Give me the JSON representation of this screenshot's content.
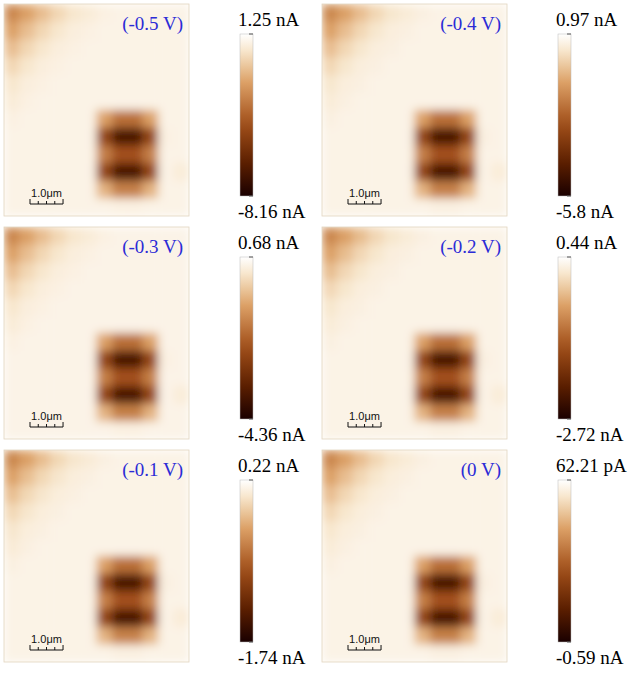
{
  "chart_data": [
    {
      "type": "heatmap",
      "title": "(-0.5 V)",
      "xlim": [
        0,
        5.6
      ],
      "ylim": [
        0,
        6.4
      ],
      "tick_labels": false,
      "scale_bar": {
        "value": 1.0,
        "label": "1.0μm"
      },
      "colorbar": {
        "range": [
          -8.16,
          1.25
        ],
        "ticks": [
          {
            "value": -8.16,
            "label": "-8.16 nA"
          },
          {
            "value": 1.25,
            "label": "1.25 nA"
          }
        ]
      },
      "z": [
        [
          -2.33,
          -1.57,
          -0.82,
          -0.16,
          0.31,
          0.5,
          0.69,
          0.78,
          0.78,
          0.78,
          0.78,
          0.78
        ],
        [
          -1.57,
          -0.82,
          -0.16,
          0.31,
          0.59,
          0.69,
          0.78,
          0.78,
          0.78,
          0.78,
          0.78,
          0.78
        ],
        [
          -0.82,
          -0.16,
          0.31,
          0.59,
          0.69,
          0.78,
          0.78,
          0.78,
          0.78,
          0.78,
          0.78,
          0.78
        ],
        [
          -0.16,
          0.31,
          0.59,
          0.69,
          0.78,
          0.78,
          0.78,
          0.78,
          0.78,
          0.78,
          0.78,
          0.78
        ],
        [
          0.31,
          0.59,
          0.69,
          0.78,
          0.78,
          0.78,
          0.78,
          0.78,
          0.78,
          0.78,
          0.78,
          0.78
        ],
        [
          0.5,
          0.69,
          0.78,
          0.78,
          0.78,
          0.78,
          0.78,
          0.78,
          0.78,
          0.78,
          0.78,
          0.78
        ],
        [
          0.69,
          0.78,
          0.78,
          0.78,
          0.78,
          0.78,
          -1.57,
          -2.98,
          -2.98,
          -1.57,
          0.78,
          0.78
        ],
        [
          0.78,
          0.78,
          0.78,
          0.78,
          0.78,
          0.78,
          -4.4,
          -6.75,
          -6.75,
          -4.4,
          0.69,
          0.78
        ],
        [
          0.78,
          0.78,
          0.78,
          0.78,
          0.78,
          0.78,
          -2.51,
          -3.93,
          -3.93,
          -2.51,
          0.78,
          0.78
        ],
        [
          0.78,
          0.78,
          0.78,
          0.78,
          0.78,
          0.78,
          -4.4,
          -6.75,
          -6.75,
          -4.4,
          0.78,
          0.5
        ],
        [
          0.78,
          0.78,
          0.78,
          0.78,
          0.78,
          0.78,
          -1.1,
          -2.51,
          -2.51,
          -1.1,
          0.78,
          0.78
        ],
        [
          0.78,
          0.78,
          0.78,
          0.78,
          0.78,
          0.78,
          0.78,
          0.69,
          0.69,
          0.78,
          0.78,
          0.78
        ]
      ]
    },
    {
      "type": "heatmap",
      "title": "(-0.4 V)",
      "xlim": [
        0,
        5.6
      ],
      "ylim": [
        0,
        6.4
      ],
      "tick_labels": false,
      "scale_bar": {
        "value": 1.0,
        "label": "1.0μm"
      },
      "colorbar": {
        "range": [
          -5.8,
          0.97
        ],
        "ticks": [
          {
            "value": -5.8,
            "label": "-5.8 nA"
          },
          {
            "value": 0.97,
            "label": "0.97 nA"
          }
        ]
      },
      "z": [
        [
          -1.6,
          -1.06,
          -0.52,
          -0.05,
          0.29,
          0.43,
          0.56,
          0.63,
          0.63,
          0.63,
          0.63,
          0.63
        ],
        [
          -1.06,
          -0.52,
          -0.05,
          0.29,
          0.5,
          0.56,
          0.63,
          0.63,
          0.63,
          0.63,
          0.63,
          0.63
        ],
        [
          -0.52,
          -0.05,
          0.29,
          0.5,
          0.56,
          0.63,
          0.63,
          0.63,
          0.63,
          0.63,
          0.63,
          0.63
        ],
        [
          -0.05,
          0.29,
          0.5,
          0.56,
          0.63,
          0.63,
          0.63,
          0.63,
          0.63,
          0.63,
          0.63,
          0.63
        ],
        [
          0.29,
          0.5,
          0.56,
          0.63,
          0.63,
          0.63,
          0.63,
          0.63,
          0.63,
          0.63,
          0.63,
          0.63
        ],
        [
          0.43,
          0.56,
          0.63,
          0.63,
          0.63,
          0.63,
          0.63,
          0.63,
          0.63,
          0.63,
          0.63,
          0.63
        ],
        [
          0.56,
          0.63,
          0.63,
          0.63,
          0.63,
          0.63,
          -1.06,
          -2.08,
          -2.08,
          -1.06,
          0.63,
          0.63
        ],
        [
          0.63,
          0.63,
          0.63,
          0.63,
          0.63,
          0.63,
          -3.09,
          -4.78,
          -4.78,
          -3.09,
          0.56,
          0.63
        ],
        [
          0.63,
          0.63,
          0.63,
          0.63,
          0.63,
          0.63,
          -1.74,
          -2.75,
          -2.75,
          -1.74,
          0.63,
          0.63
        ],
        [
          0.63,
          0.63,
          0.63,
          0.63,
          0.63,
          0.63,
          -3.09,
          -4.78,
          -4.78,
          -3.09,
          0.63,
          0.43
        ],
        [
          0.63,
          0.63,
          0.63,
          0.63,
          0.63,
          0.63,
          -0.72,
          -1.74,
          -1.74,
          -0.72,
          0.63,
          0.63
        ],
        [
          0.63,
          0.63,
          0.63,
          0.63,
          0.63,
          0.63,
          0.63,
          0.56,
          0.56,
          0.63,
          0.63,
          0.63
        ]
      ]
    },
    {
      "type": "heatmap",
      "title": "(-0.3 V)",
      "xlim": [
        0,
        5.6
      ],
      "ylim": [
        0,
        6.4
      ],
      "tick_labels": false,
      "scale_bar": {
        "value": 1.0,
        "label": "1.0μm"
      },
      "colorbar": {
        "range": [
          -4.36,
          0.68
        ],
        "ticks": [
          {
            "value": -4.36,
            "label": "-4.36 nA"
          },
          {
            "value": 0.68,
            "label": "0.68 nA"
          }
        ]
      },
      "z": [
        [
          -1.24,
          -0.83,
          -0.43,
          -0.08,
          0.18,
          0.28,
          0.38,
          0.43,
          0.43,
          0.43,
          0.43,
          0.43
        ],
        [
          -0.83,
          -0.43,
          -0.08,
          0.18,
          0.33,
          0.38,
          0.43,
          0.43,
          0.43,
          0.43,
          0.43,
          0.43
        ],
        [
          -0.43,
          -0.08,
          0.18,
          0.33,
          0.38,
          0.43,
          0.43,
          0.43,
          0.43,
          0.43,
          0.43,
          0.43
        ],
        [
          -0.08,
          0.18,
          0.33,
          0.38,
          0.43,
          0.43,
          0.43,
          0.43,
          0.43,
          0.43,
          0.43,
          0.43
        ],
        [
          0.18,
          0.33,
          0.38,
          0.43,
          0.43,
          0.43,
          0.43,
          0.43,
          0.43,
          0.43,
          0.43,
          0.43
        ],
        [
          0.28,
          0.38,
          0.43,
          0.43,
          0.43,
          0.43,
          0.43,
          0.43,
          0.43,
          0.43,
          0.43,
          0.43
        ],
        [
          0.38,
          0.43,
          0.43,
          0.43,
          0.43,
          0.43,
          -0.83,
          -1.59,
          -1.59,
          -0.83,
          0.43,
          0.43
        ],
        [
          0.43,
          0.43,
          0.43,
          0.43,
          0.43,
          0.43,
          -2.34,
          -3.6,
          -3.6,
          -2.34,
          0.38,
          0.43
        ],
        [
          0.43,
          0.43,
          0.43,
          0.43,
          0.43,
          0.43,
          -1.34,
          -2.09,
          -2.09,
          -1.34,
          0.43,
          0.43
        ],
        [
          0.43,
          0.43,
          0.43,
          0.43,
          0.43,
          0.43,
          -2.34,
          -3.6,
          -3.6,
          -2.34,
          0.43,
          0.28
        ],
        [
          0.43,
          0.43,
          0.43,
          0.43,
          0.43,
          0.43,
          -0.58,
          -1.34,
          -1.34,
          -0.58,
          0.43,
          0.43
        ],
        [
          0.43,
          0.43,
          0.43,
          0.43,
          0.43,
          0.43,
          0.43,
          0.38,
          0.38,
          0.43,
          0.43,
          0.43
        ]
      ]
    },
    {
      "type": "heatmap",
      "title": "(-0.2 V)",
      "xlim": [
        0,
        5.6
      ],
      "ylim": [
        0,
        6.4
      ],
      "tick_labels": false,
      "scale_bar": {
        "value": 1.0,
        "label": "1.0μm"
      },
      "colorbar": {
        "range": [
          -2.72,
          0.44
        ],
        "ticks": [
          {
            "value": -2.72,
            "label": "-2.72 nA"
          },
          {
            "value": 0.44,
            "label": "0.44 nA"
          }
        ]
      },
      "z": [
        [
          -0.76,
          -0.51,
          -0.26,
          -0.03,
          0.12,
          0.19,
          0.25,
          0.28,
          0.28,
          0.28,
          0.28,
          0.28
        ],
        [
          -0.51,
          -0.26,
          -0.03,
          0.12,
          0.22,
          0.25,
          0.28,
          0.28,
          0.28,
          0.28,
          0.28,
          0.28
        ],
        [
          -0.26,
          -0.03,
          0.12,
          0.22,
          0.25,
          0.28,
          0.28,
          0.28,
          0.28,
          0.28,
          0.28,
          0.28
        ],
        [
          -0.03,
          0.12,
          0.22,
          0.25,
          0.28,
          0.28,
          0.28,
          0.28,
          0.28,
          0.28,
          0.28,
          0.28
        ],
        [
          0.12,
          0.22,
          0.25,
          0.28,
          0.28,
          0.28,
          0.28,
          0.28,
          0.28,
          0.28,
          0.28,
          0.28
        ],
        [
          0.19,
          0.25,
          0.28,
          0.28,
          0.28,
          0.28,
          0.28,
          0.28,
          0.28,
          0.28,
          0.28,
          0.28
        ],
        [
          0.25,
          0.28,
          0.28,
          0.28,
          0.28,
          0.28,
          -0.51,
          -0.98,
          -0.98,
          -0.51,
          0.28,
          0.28
        ],
        [
          0.28,
          0.28,
          0.28,
          0.28,
          0.28,
          0.28,
          -1.46,
          -2.25,
          -2.25,
          -1.46,
          0.25,
          0.28
        ],
        [
          0.28,
          0.28,
          0.28,
          0.28,
          0.28,
          0.28,
          -0.82,
          -1.3,
          -1.3,
          -0.82,
          0.28,
          0.28
        ],
        [
          0.28,
          0.28,
          0.28,
          0.28,
          0.28,
          0.28,
          -1.46,
          -2.25,
          -2.25,
          -1.46,
          0.28,
          0.19
        ],
        [
          0.28,
          0.28,
          0.28,
          0.28,
          0.28,
          0.28,
          -0.35,
          -0.82,
          -0.82,
          -0.35,
          0.28,
          0.28
        ],
        [
          0.28,
          0.28,
          0.28,
          0.28,
          0.28,
          0.28,
          0.28,
          0.25,
          0.25,
          0.28,
          0.28,
          0.28
        ]
      ]
    },
    {
      "type": "heatmap",
      "title": "(-0.1 V)",
      "xlim": [
        0,
        5.6
      ],
      "ylim": [
        0,
        6.4
      ],
      "tick_labels": false,
      "scale_bar": {
        "value": 1.0,
        "label": "1.0μm"
      },
      "colorbar": {
        "range": [
          -1.74,
          0.22
        ],
        "ticks": [
          {
            "value": -1.74,
            "label": "-1.74 nA"
          },
          {
            "value": 0.22,
            "label": "0.22 nA"
          }
        ]
      },
      "z": [
        [
          -0.52,
          -0.37,
          -0.21,
          -0.07,
          0.02,
          0.06,
          0.1,
          0.12,
          0.12,
          0.12,
          0.12,
          0.12
        ],
        [
          -0.37,
          -0.21,
          -0.07,
          0.02,
          0.08,
          0.1,
          0.12,
          0.12,
          0.12,
          0.12,
          0.12,
          0.12
        ],
        [
          -0.21,
          -0.07,
          0.02,
          0.08,
          0.1,
          0.12,
          0.12,
          0.12,
          0.12,
          0.12,
          0.12,
          0.12
        ],
        [
          -0.07,
          0.02,
          0.08,
          0.1,
          0.12,
          0.12,
          0.12,
          0.12,
          0.12,
          0.12,
          0.12,
          0.12
        ],
        [
          0.02,
          0.08,
          0.1,
          0.12,
          0.12,
          0.12,
          0.12,
          0.12,
          0.12,
          0.12,
          0.12,
          0.12
        ],
        [
          0.06,
          0.1,
          0.12,
          0.12,
          0.12,
          0.12,
          0.12,
          0.12,
          0.12,
          0.12,
          0.12,
          0.12
        ],
        [
          0.1,
          0.12,
          0.12,
          0.12,
          0.12,
          0.12,
          -0.37,
          -0.66,
          -0.66,
          -0.37,
          0.12,
          0.12
        ],
        [
          0.12,
          0.12,
          0.12,
          0.12,
          0.12,
          0.12,
          -0.96,
          -1.45,
          -1.45,
          -0.96,
          0.1,
          0.12
        ],
        [
          0.12,
          0.12,
          0.12,
          0.12,
          0.12,
          0.12,
          -0.56,
          -0.86,
          -0.86,
          -0.56,
          0.12,
          0.12
        ],
        [
          0.12,
          0.12,
          0.12,
          0.12,
          0.12,
          0.12,
          -0.96,
          -1.45,
          -1.45,
          -0.96,
          0.12,
          0.06
        ],
        [
          0.12,
          0.12,
          0.12,
          0.12,
          0.12,
          0.12,
          -0.27,
          -0.56,
          -0.56,
          -0.27,
          0.12,
          0.12
        ],
        [
          0.12,
          0.12,
          0.12,
          0.12,
          0.12,
          0.12,
          0.12,
          0.1,
          0.1,
          0.12,
          0.12,
          0.12
        ]
      ]
    },
    {
      "type": "heatmap",
      "title": "(0 V)",
      "xlim": [
        0,
        5.6
      ],
      "ylim": [
        0,
        6.4
      ],
      "tick_labels": false,
      "scale_bar": {
        "value": 1.0,
        "label": "1.0μm"
      },
      "colorbar": {
        "range": [
          -0.59,
          0.06221
        ],
        "ticks": [
          {
            "value": -0.59,
            "label": "-0.59 nA"
          },
          {
            "value": 0.06221,
            "label": "62.21 pA"
          }
        ]
      },
      "z": [
        [
          -0.186,
          -0.134,
          -0.081,
          -0.036,
          -0.003,
          0.01,
          0.023,
          0.029,
          0.029,
          0.029,
          0.029,
          0.029
        ],
        [
          -0.134,
          -0.081,
          -0.036,
          -0.003,
          0.016,
          0.023,
          0.029,
          0.029,
          0.029,
          0.029,
          0.029,
          0.029
        ],
        [
          -0.081,
          -0.036,
          -0.003,
          0.016,
          0.023,
          0.029,
          0.029,
          0.029,
          0.029,
          0.029,
          0.029,
          0.029
        ],
        [
          -0.036,
          -0.003,
          0.016,
          0.023,
          0.029,
          0.029,
          0.029,
          0.029,
          0.029,
          0.029,
          0.029,
          0.029
        ],
        [
          -0.003,
          0.016,
          0.023,
          0.029,
          0.029,
          0.029,
          0.029,
          0.029,
          0.029,
          0.029,
          0.029,
          0.029
        ],
        [
          0.01,
          0.023,
          0.029,
          0.029,
          0.029,
          0.029,
          0.029,
          0.029,
          0.029,
          0.029,
          0.029,
          0.029
        ],
        [
          0.023,
          0.029,
          0.029,
          0.029,
          0.029,
          0.029,
          -0.134,
          -0.231,
          -0.231,
          -0.134,
          0.029,
          0.029
        ],
        [
          0.029,
          0.029,
          0.029,
          0.029,
          0.029,
          0.029,
          -0.329,
          -0.492,
          -0.492,
          -0.329,
          0.023,
          0.029
        ],
        [
          0.029,
          0.029,
          0.029,
          0.029,
          0.029,
          0.029,
          -0.199,
          -0.297,
          -0.297,
          -0.199,
          0.029,
          0.029
        ],
        [
          0.029,
          0.029,
          0.029,
          0.029,
          0.029,
          0.029,
          -0.329,
          -0.492,
          -0.492,
          -0.329,
          0.029,
          0.01
        ],
        [
          0.029,
          0.029,
          0.029,
          0.029,
          0.029,
          0.029,
          -0.101,
          -0.199,
          -0.199,
          -0.101,
          0.029,
          0.029
        ],
        [
          0.029,
          0.029,
          0.029,
          0.029,
          0.029,
          0.029,
          0.029,
          0.023,
          0.023,
          0.029,
          0.029,
          0.029
        ]
      ]
    }
  ]
}
